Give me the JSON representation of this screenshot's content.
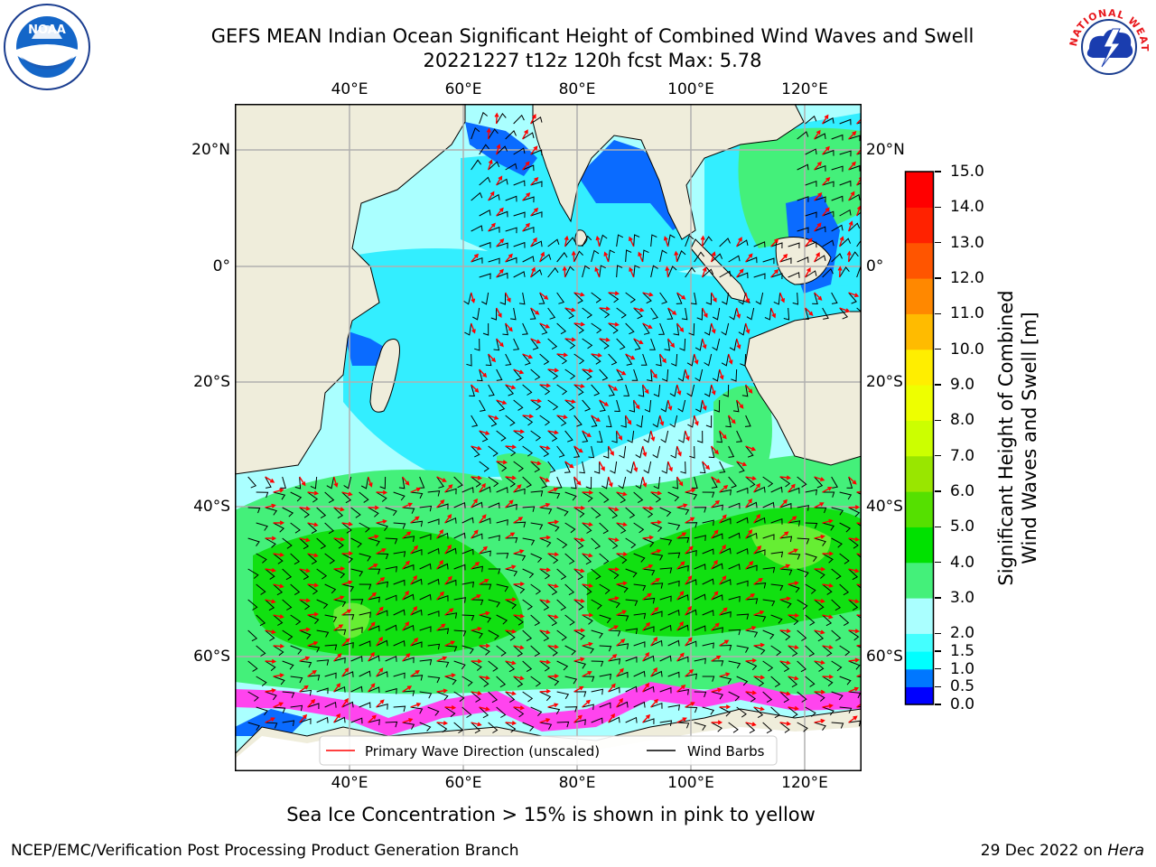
{
  "header": {
    "title_line1": "GEFS MEAN Indian Ocean Significant Height of Combined Wind Waves and Swell",
    "title_line2": "20221227 t12z 120h fcst   Max: 5.78"
  },
  "logos": {
    "left": "NOAA",
    "right": "NATIONAL WEATHER SERVICE"
  },
  "map": {
    "lon_labels": [
      "40°E",
      "60°E",
      "80°E",
      "100°E",
      "120°E"
    ],
    "lat_labels": [
      "20°N",
      "0°",
      "20°S",
      "40°S",
      "60°S"
    ],
    "colors": {
      "land": "#efeddb",
      "ocean_base": "#aaffff",
      "cyan": "#33eeff",
      "green": "#44f07a",
      "bright_green": "#11e011",
      "blue": "#0a6bff",
      "ice": "#ff44ee",
      "arrow": "#ff0000",
      "barb": "#000000"
    },
    "legend": {
      "wave_label": "Primary Wave Direction (unscaled)",
      "barb_label": "Wind Barbs"
    }
  },
  "colorbar": {
    "title_line1": "Significant Height of Combined",
    "title_line2": "Wind Waves and Swell [m]",
    "tick_labels": [
      "0.0",
      "0.5",
      "1.0",
      "1.5",
      "2.0",
      "3.0",
      "4.0",
      "5.0",
      "6.0",
      "7.0",
      "8.0",
      "9.0",
      "10.0",
      "11.0",
      "12.0",
      "13.0",
      "14.0",
      "15.0"
    ],
    "colors": [
      "#0000ff",
      "#0077ff",
      "#00ffff",
      "#44ffff",
      "#aaffff",
      "#44f07a",
      "#00e100",
      "#55e000",
      "#99e600",
      "#ccff00",
      "#eeff00",
      "#ffee00",
      "#ffbb00",
      "#ff8800",
      "#ff5500",
      "#ff2200",
      "#ff0000"
    ]
  },
  "caption": "Sea Ice Concentration > 15% is shown in pink to yellow",
  "footer": {
    "left": "NCEP/EMC/Verification Post Processing Product Generation Branch",
    "date": "29 Dec 2022 on",
    "host": "Hera"
  }
}
